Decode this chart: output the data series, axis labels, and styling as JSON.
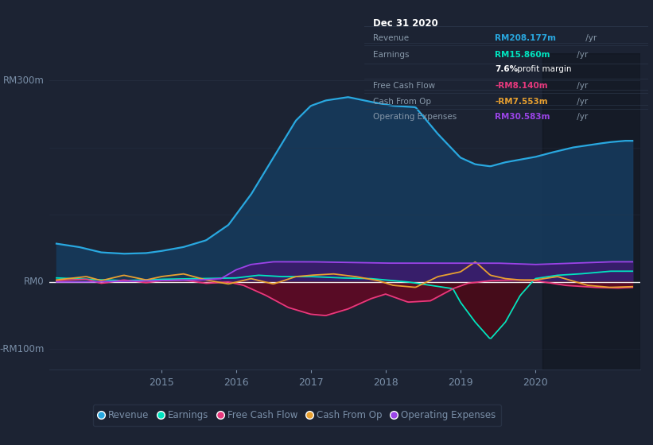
{
  "background_color": "#1c2333",
  "plot_bg_color": "#1c2333",
  "grid_color": "#2a3548",
  "axis_label_color": "#7a8fa8",
  "ylim": [
    -130,
    340
  ],
  "xlim": [
    2013.5,
    2021.4
  ],
  "series_colors": {
    "revenue": "#29a8e0",
    "earnings": "#00e5c0",
    "free_cash_flow": "#e8397d",
    "cash_from_op": "#e8a030",
    "operating_expenses": "#9b44e8"
  },
  "info_box": {
    "title": "Dec 31 2020",
    "rows": [
      {
        "label": "Revenue",
        "value": "RM208.177m",
        "color": "#29a8e0",
        "suffix": " /yr"
      },
      {
        "label": "Earnings",
        "value": "RM15.860m",
        "color": "#00e5c0",
        "suffix": " /yr"
      },
      {
        "label": "",
        "value": "7.6%",
        "extra": " profit margin",
        "color": "#ffffff"
      },
      {
        "label": "Free Cash Flow",
        "value": "-RM8.140m",
        "color": "#e8397d",
        "suffix": " /yr"
      },
      {
        "label": "Cash From Op",
        "value": "-RM7.553m",
        "color": "#e8a030",
        "suffix": " /yr"
      },
      {
        "label": "Operating Expenses",
        "value": "RM30.583m",
        "color": "#9b44e8",
        "suffix": " /yr"
      }
    ]
  },
  "legend_items": [
    {
      "label": "Revenue",
      "color": "#29a8e0"
    },
    {
      "label": "Earnings",
      "color": "#00e5c0"
    },
    {
      "label": "Free Cash Flow",
      "color": "#e8397d"
    },
    {
      "label": "Cash From Op",
      "color": "#e8a030"
    },
    {
      "label": "Operating Expenses",
      "color": "#9b44e8"
    }
  ],
  "shaded_region_start": 2020.1
}
